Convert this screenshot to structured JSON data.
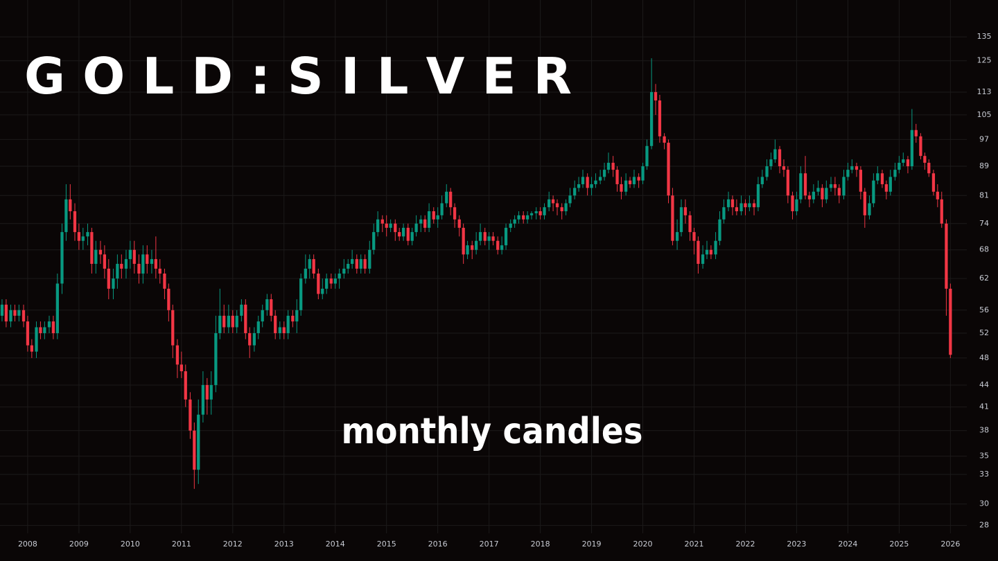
{
  "chart_data": {
    "type": "candlestick",
    "title": "G O L D : S I L V E R",
    "annotation": "monthly candles",
    "log_scale": true,
    "grid": true,
    "up_color": "#089981",
    "down_color": "#f23645",
    "xlim": [
      2007.46,
      2026.32
    ],
    "xticks": [
      2008,
      2009,
      2010,
      2011,
      2012,
      2013,
      2014,
      2015,
      2016,
      2017,
      2018,
      2019,
      2020,
      2021,
      2022,
      2023,
      2024,
      2025,
      2026
    ],
    "ylim": [
      27.3,
      152
    ],
    "yticks": [
      28,
      30,
      33,
      35,
      38,
      41,
      44,
      48,
      52,
      56,
      62,
      68,
      74,
      81,
      89,
      97,
      105,
      113,
      125,
      135
    ],
    "x": [
      2007.5,
      2007.58,
      2007.67,
      2007.75,
      2007.83,
      2007.92,
      2008.0,
      2008.08,
      2008.17,
      2008.25,
      2008.33,
      2008.42,
      2008.5,
      2008.58,
      2008.67,
      2008.75,
      2008.83,
      2008.92,
      2009.0,
      2009.08,
      2009.17,
      2009.25,
      2009.33,
      2009.42,
      2009.5,
      2009.58,
      2009.67,
      2009.75,
      2009.83,
      2009.92,
      2010.0,
      2010.08,
      2010.17,
      2010.25,
      2010.33,
      2010.42,
      2010.5,
      2010.58,
      2010.67,
      2010.75,
      2010.83,
      2010.92,
      2011.0,
      2011.08,
      2011.17,
      2011.25,
      2011.33,
      2011.42,
      2011.5,
      2011.58,
      2011.67,
      2011.75,
      2011.83,
      2011.92,
      2012.0,
      2012.08,
      2012.17,
      2012.25,
      2012.33,
      2012.42,
      2012.5,
      2012.58,
      2012.67,
      2012.75,
      2012.83,
      2012.92,
      2013.0,
      2013.08,
      2013.17,
      2013.25,
      2013.33,
      2013.42,
      2013.5,
      2013.58,
      2013.67,
      2013.75,
      2013.83,
      2013.92,
      2014.0,
      2014.08,
      2014.17,
      2014.25,
      2014.33,
      2014.42,
      2014.5,
      2014.58,
      2014.67,
      2014.75,
      2014.83,
      2014.92,
      2015.0,
      2015.08,
      2015.17,
      2015.25,
      2015.33,
      2015.42,
      2015.5,
      2015.58,
      2015.67,
      2015.75,
      2015.83,
      2015.92,
      2016.0,
      2016.08,
      2016.17,
      2016.25,
      2016.33,
      2016.42,
      2016.5,
      2016.58,
      2016.67,
      2016.75,
      2016.83,
      2016.92,
      2017.0,
      2017.08,
      2017.17,
      2017.25,
      2017.33,
      2017.42,
      2017.5,
      2017.58,
      2017.67,
      2017.75,
      2017.83,
      2017.92,
      2018.0,
      2018.08,
      2018.17,
      2018.25,
      2018.33,
      2018.42,
      2018.5,
      2018.58,
      2018.67,
      2018.75,
      2018.83,
      2018.92,
      2019.0,
      2019.08,
      2019.17,
      2019.25,
      2019.33,
      2019.42,
      2019.5,
      2019.58,
      2019.67,
      2019.75,
      2019.83,
      2019.92,
      2020.0,
      2020.08,
      2020.17,
      2020.25,
      2020.33,
      2020.42,
      2020.5,
      2020.58,
      2020.67,
      2020.75,
      2020.83,
      2020.92,
      2021.0,
      2021.08,
      2021.17,
      2021.25,
      2021.33,
      2021.42,
      2021.5,
      2021.58,
      2021.67,
      2021.75,
      2021.83,
      2021.92,
      2022.0,
      2022.08,
      2022.17,
      2022.25,
      2022.33,
      2022.42,
      2022.5,
      2022.58,
      2022.67,
      2022.75,
      2022.83,
      2022.92,
      2023.0,
      2023.08,
      2023.17,
      2023.25,
      2023.33,
      2023.42,
      2023.5,
      2023.58,
      2023.67,
      2023.75,
      2023.83,
      2023.92,
      2024.0,
      2024.08,
      2024.17,
      2024.25,
      2024.33,
      2024.42,
      2024.5,
      2024.58,
      2024.67,
      2024.75,
      2024.83,
      2024.92,
      2025.0,
      2025.08,
      2025.17,
      2025.25,
      2025.33,
      2025.42,
      2025.5,
      2025.58,
      2025.67,
      2025.75,
      2025.83,
      2025.92,
      2026.0
    ],
    "ohlc": [
      [
        55,
        58,
        54,
        57
      ],
      [
        57,
        58,
        53,
        54
      ],
      [
        54,
        57,
        53,
        56
      ],
      [
        56,
        57,
        54,
        55
      ],
      [
        55,
        57,
        54,
        56
      ],
      [
        56,
        57,
        53,
        54
      ],
      [
        54,
        55,
        49,
        50
      ],
      [
        50,
        51,
        48,
        49
      ],
      [
        49,
        54,
        48,
        53
      ],
      [
        53,
        54,
        51,
        52
      ],
      [
        52,
        54,
        51,
        53
      ],
      [
        53,
        55,
        52,
        54
      ],
      [
        54,
        55,
        51,
        52
      ],
      [
        52,
        63,
        51,
        61
      ],
      [
        61,
        74,
        59,
        72
      ],
      [
        72,
        84,
        70,
        80
      ],
      [
        80,
        84,
        75,
        77
      ],
      [
        77,
        79,
        70,
        72
      ],
      [
        72,
        74,
        68,
        70
      ],
      [
        70,
        73,
        68,
        71
      ],
      [
        71,
        74,
        69,
        72
      ],
      [
        72,
        73,
        63,
        65
      ],
      [
        65,
        70,
        63,
        68
      ],
      [
        68,
        70,
        65,
        67
      ],
      [
        67,
        69,
        62,
        64
      ],
      [
        64,
        66,
        58,
        60
      ],
      [
        60,
        64,
        58,
        62
      ],
      [
        62,
        67,
        60,
        65
      ],
      [
        65,
        67,
        62,
        64
      ],
      [
        64,
        68,
        62,
        66
      ],
      [
        66,
        70,
        64,
        68
      ],
      [
        68,
        70,
        63,
        65
      ],
      [
        65,
        67,
        61,
        63
      ],
      [
        63,
        69,
        61,
        67
      ],
      [
        67,
        69,
        63,
        65
      ],
      [
        65,
        68,
        63,
        66
      ],
      [
        66,
        71,
        62,
        64
      ],
      [
        64,
        66,
        61,
        63
      ],
      [
        63,
        64,
        58,
        60
      ],
      [
        60,
        61,
        54,
        56
      ],
      [
        56,
        57,
        48,
        50
      ],
      [
        50,
        51,
        45,
        47
      ],
      [
        47,
        49,
        45,
        46
      ],
      [
        46,
        47,
        41,
        42
      ],
      [
        42,
        43,
        37,
        38
      ],
      [
        38,
        39,
        31.5,
        33.5
      ],
      [
        33.5,
        42,
        32,
        40
      ],
      [
        40,
        46,
        39,
        44
      ],
      [
        44,
        45,
        40,
        42
      ],
      [
        42,
        46,
        40,
        44
      ],
      [
        44,
        55,
        43,
        52
      ],
      [
        52,
        60,
        51,
        55
      ],
      [
        55,
        57,
        52,
        53
      ],
      [
        53,
        57,
        52,
        55
      ],
      [
        55,
        56,
        52,
        53
      ],
      [
        53,
        56,
        52,
        55
      ],
      [
        55,
        58,
        54,
        57
      ],
      [
        57,
        58,
        51,
        52
      ],
      [
        52,
        53,
        48,
        50
      ],
      [
        50,
        53,
        49,
        52
      ],
      [
        52,
        55,
        51,
        54
      ],
      [
        54,
        57,
        53,
        56
      ],
      [
        56,
        59,
        55,
        58
      ],
      [
        58,
        59,
        54,
        55
      ],
      [
        55,
        56,
        51,
        52
      ],
      [
        52,
        54,
        51,
        53
      ],
      [
        53,
        54,
        51,
        52
      ],
      [
        52,
        56,
        51,
        55
      ],
      [
        55,
        56,
        53,
        54
      ],
      [
        54,
        58,
        52,
        56
      ],
      [
        56,
        63,
        55,
        62
      ],
      [
        62,
        67,
        61,
        64
      ],
      [
        64,
        67,
        62,
        66
      ],
      [
        66,
        67,
        62,
        63
      ],
      [
        63,
        64,
        58,
        59
      ],
      [
        59,
        62,
        58,
        60
      ],
      [
        60,
        63,
        59,
        62
      ],
      [
        62,
        63,
        60,
        61
      ],
      [
        61,
        63,
        60,
        62
      ],
      [
        62,
        64,
        60,
        63
      ],
      [
        63,
        66,
        62,
        64
      ],
      [
        64,
        66,
        63,
        65
      ],
      [
        65,
        68,
        64,
        66
      ],
      [
        66,
        67,
        63,
        64
      ],
      [
        64,
        67,
        63,
        66
      ],
      [
        66,
        67,
        63,
        64
      ],
      [
        64,
        70,
        63,
        68
      ],
      [
        68,
        74,
        67,
        72
      ],
      [
        72,
        77,
        71,
        75
      ],
      [
        75,
        76,
        72,
        74
      ],
      [
        74,
        76,
        71,
        73
      ],
      [
        73,
        75,
        72,
        74
      ],
      [
        74,
        75,
        70,
        72
      ],
      [
        72,
        73,
        70,
        71
      ],
      [
        71,
        74,
        70,
        73
      ],
      [
        73,
        74,
        69,
        70
      ],
      [
        70,
        73,
        69,
        72
      ],
      [
        72,
        76,
        71,
        74
      ],
      [
        74,
        76,
        72,
        75
      ],
      [
        75,
        76,
        72,
        73
      ],
      [
        73,
        79,
        72,
        77
      ],
      [
        77,
        78,
        74,
        75
      ],
      [
        75,
        78,
        73,
        76
      ],
      [
        76,
        81,
        75,
        79
      ],
      [
        79,
        84,
        78,
        82
      ],
      [
        82,
        83,
        76,
        78
      ],
      [
        78,
        79,
        73,
        75
      ],
      [
        75,
        76,
        71,
        73
      ],
      [
        73,
        74,
        65,
        67
      ],
      [
        67,
        70,
        66,
        69
      ],
      [
        69,
        70,
        66,
        68
      ],
      [
        68,
        72,
        67,
        70
      ],
      [
        70,
        74,
        69,
        72
      ],
      [
        72,
        73,
        69,
        70
      ],
      [
        70,
        72,
        68,
        71
      ],
      [
        71,
        72,
        69,
        70
      ],
      [
        70,
        71,
        67,
        68
      ],
      [
        68,
        71,
        67,
        69
      ],
      [
        69,
        74,
        68,
        73
      ],
      [
        73,
        75,
        72,
        74
      ],
      [
        74,
        76,
        73,
        75
      ],
      [
        75,
        77,
        74,
        76
      ],
      [
        76,
        77,
        74,
        75
      ],
      [
        75,
        77,
        74,
        76
      ],
      [
        76,
        77,
        75,
        76.5
      ],
      [
        76.5,
        78,
        75,
        77
      ],
      [
        77,
        78,
        75,
        76
      ],
      [
        76,
        79,
        75,
        78
      ],
      [
        78,
        82,
        77,
        80
      ],
      [
        80,
        81,
        77,
        79
      ],
      [
        79,
        80,
        76,
        78
      ],
      [
        78,
        79,
        75,
        77
      ],
      [
        77,
        80,
        76,
        79
      ],
      [
        79,
        83,
        78,
        81
      ],
      [
        81,
        85,
        80,
        83
      ],
      [
        83,
        86,
        82,
        84
      ],
      [
        84,
        88,
        83,
        86
      ],
      [
        86,
        87,
        81,
        83
      ],
      [
        83,
        86,
        81,
        84
      ],
      [
        84,
        87,
        83,
        85
      ],
      [
        85,
        88,
        84,
        86
      ],
      [
        86,
        90,
        85,
        88
      ],
      [
        88,
        93,
        87,
        90
      ],
      [
        90,
        92,
        86,
        88
      ],
      [
        88,
        89,
        82,
        84
      ],
      [
        84,
        86,
        80,
        82
      ],
      [
        82,
        87,
        81,
        85
      ],
      [
        85,
        86,
        83,
        84
      ],
      [
        84,
        88,
        83,
        86
      ],
      [
        86,
        87,
        83,
        85
      ],
      [
        85,
        90,
        84,
        89
      ],
      [
        89,
        97,
        88,
        95
      ],
      [
        95,
        126,
        94,
        113
      ],
      [
        113,
        116,
        105,
        110
      ],
      [
        110,
        112,
        96,
        98
      ],
      [
        98,
        99,
        94,
        96
      ],
      [
        96,
        97,
        79,
        81
      ],
      [
        81,
        83,
        69,
        70
      ],
      [
        70,
        75,
        68,
        72
      ],
      [
        72,
        80,
        71,
        78
      ],
      [
        78,
        80,
        74,
        76
      ],
      [
        76,
        77,
        70,
        72
      ],
      [
        72,
        73,
        67,
        70
      ],
      [
        70,
        71,
        63,
        65
      ],
      [
        65,
        69,
        64,
        67
      ],
      [
        67,
        70,
        66,
        68
      ],
      [
        68,
        69,
        66,
        67
      ],
      [
        67,
        72,
        66,
        70
      ],
      [
        70,
        77,
        69,
        75
      ],
      [
        75,
        80,
        74,
        78
      ],
      [
        78,
        82,
        77,
        80
      ],
      [
        80,
        81,
        76,
        78
      ],
      [
        78,
        80,
        76,
        77
      ],
      [
        77,
        81,
        76,
        79
      ],
      [
        79,
        80,
        76,
        78
      ],
      [
        78,
        81,
        77,
        79
      ],
      [
        79,
        80,
        76,
        78
      ],
      [
        78,
        86,
        77,
        84
      ],
      [
        84,
        88,
        83,
        86
      ],
      [
        86,
        91,
        85,
        89
      ],
      [
        89,
        93,
        88,
        91
      ],
      [
        91,
        97,
        90,
        94
      ],
      [
        94,
        95,
        87,
        89
      ],
      [
        89,
        91,
        86,
        88
      ],
      [
        88,
        89,
        79,
        81
      ],
      [
        81,
        82,
        75,
        77
      ],
      [
        77,
        82,
        76,
        80
      ],
      [
        80,
        89,
        79,
        87
      ],
      [
        87,
        92,
        80,
        81
      ],
      [
        81,
        82,
        78,
        80
      ],
      [
        80,
        84,
        79,
        82
      ],
      [
        82,
        85,
        81,
        83
      ],
      [
        83,
        84,
        78,
        80
      ],
      [
        80,
        85,
        79,
        83
      ],
      [
        83,
        86,
        82,
        84
      ],
      [
        84,
        86,
        81,
        83
      ],
      [
        83,
        84,
        79,
        81
      ],
      [
        81,
        88,
        80,
        86
      ],
      [
        86,
        90,
        85,
        88
      ],
      [
        88,
        91,
        87,
        89
      ],
      [
        89,
        90,
        86,
        88
      ],
      [
        88,
        89,
        80,
        82
      ],
      [
        82,
        83,
        73,
        76
      ],
      [
        76,
        81,
        75,
        79
      ],
      [
        79,
        87,
        78,
        85
      ],
      [
        85,
        89,
        84,
        87
      ],
      [
        87,
        88,
        83,
        84
      ],
      [
        84,
        85,
        80,
        82
      ],
      [
        82,
        88,
        81,
        86
      ],
      [
        86,
        90,
        85,
        88
      ],
      [
        88,
        92,
        87,
        90
      ],
      [
        90,
        93,
        89,
        91
      ],
      [
        91,
        92,
        87,
        89
      ],
      [
        89,
        107,
        88,
        100
      ],
      [
        100,
        102,
        96,
        98
      ],
      [
        98,
        99,
        91,
        92
      ],
      [
        92,
        93,
        88,
        90
      ],
      [
        90,
        91,
        86,
        87
      ],
      [
        87,
        88,
        81,
        82
      ],
      [
        82,
        84,
        78,
        80
      ],
      [
        80,
        82,
        73,
        74
      ],
      [
        74,
        75,
        55,
        60
      ],
      [
        60,
        61,
        48,
        48.5
      ]
    ]
  }
}
